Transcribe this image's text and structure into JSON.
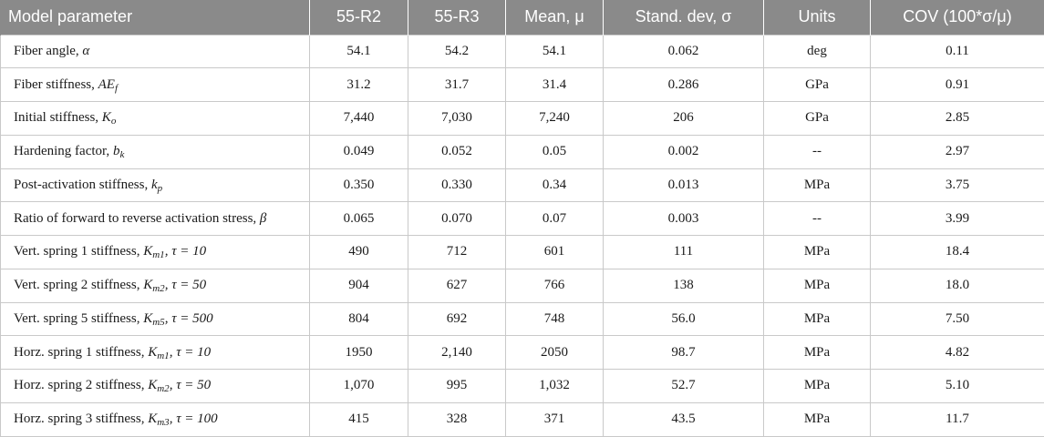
{
  "headers": [
    "Model parameter",
    "55-R2",
    "55-R3",
    "Mean, μ",
    "Stand. dev, σ",
    "Units",
    "COV (100*σ/μ)"
  ],
  "rows": [
    {
      "param": {
        "text": "Fiber angle, ",
        "sym": "α",
        "sub": "",
        "extra": ""
      },
      "values": [
        "54.1",
        "54.2",
        "54.1",
        "0.062",
        "deg",
        "0.11"
      ]
    },
    {
      "param": {
        "text": "Fiber stiffness, ",
        "sym": "AE",
        "sub": "f",
        "extra": ""
      },
      "values": [
        "31.2",
        "31.7",
        "31.4",
        "0.286",
        "GPa",
        "0.91"
      ]
    },
    {
      "param": {
        "text": "Initial stiffness, ",
        "sym": "K",
        "sub": "o",
        "extra": ""
      },
      "values": [
        "7,440",
        "7,030",
        "7,240",
        "206",
        "GPa",
        "2.85"
      ]
    },
    {
      "param": {
        "text": "Hardening factor, ",
        "sym": "b",
        "sub": "k",
        "extra": ""
      },
      "values": [
        "0.049",
        "0.052",
        "0.05",
        "0.002",
        "--",
        "2.97"
      ]
    },
    {
      "param": {
        "text": "Post-activation stiffness, ",
        "sym": "k",
        "sub": "p",
        "extra": ""
      },
      "values": [
        "0.350",
        "0.330",
        "0.34",
        "0.013",
        "MPa",
        "3.75"
      ]
    },
    {
      "param": {
        "text": "Ratio of forward to reverse activation stress, ",
        "sym": "β",
        "sub": "",
        "extra": ""
      },
      "values": [
        "0.065",
        "0.070",
        "0.07",
        "0.003",
        "--",
        "3.99"
      ]
    },
    {
      "param": {
        "text": "Vert. spring 1 stiffness, ",
        "sym": "K",
        "sub": "m1",
        "extra": ", τ = 10"
      },
      "values": [
        "490",
        "712",
        "601",
        "111",
        "MPa",
        "18.4"
      ]
    },
    {
      "param": {
        "text": "Vert. spring 2 stiffness, ",
        "sym": "K",
        "sub": "m2",
        "extra": ", τ = 50"
      },
      "values": [
        "904",
        "627",
        "766",
        "138",
        "MPa",
        "18.0"
      ]
    },
    {
      "param": {
        "text": "Vert. spring 5 stiffness, ",
        "sym": "K",
        "sub": "m5",
        "extra": ", τ = 500"
      },
      "values": [
        "804",
        "692",
        "748",
        "56.0",
        "MPa",
        "7.50"
      ]
    },
    {
      "param": {
        "text": "Horz. spring 1 stiffness, ",
        "sym": "K",
        "sub": "m1",
        "extra": ", τ = 10"
      },
      "values": [
        "1950",
        "2,140",
        "2050",
        "98.7",
        "MPa",
        "4.82"
      ]
    },
    {
      "param": {
        "text": "Horz. spring 2 stiffness, ",
        "sym": "K",
        "sub": "m2",
        "extra": ", τ = 50"
      },
      "values": [
        "1,070",
        "995",
        "1,032",
        "52.7",
        "MPa",
        "5.10"
      ]
    },
    {
      "param": {
        "text": "Horz. spring 3 stiffness, ",
        "sym": "K",
        "sub": "m3",
        "extra": ", τ = 100"
      },
      "values": [
        "415",
        "328",
        "371",
        "43.5",
        "MPa",
        "11.7"
      ]
    }
  ]
}
